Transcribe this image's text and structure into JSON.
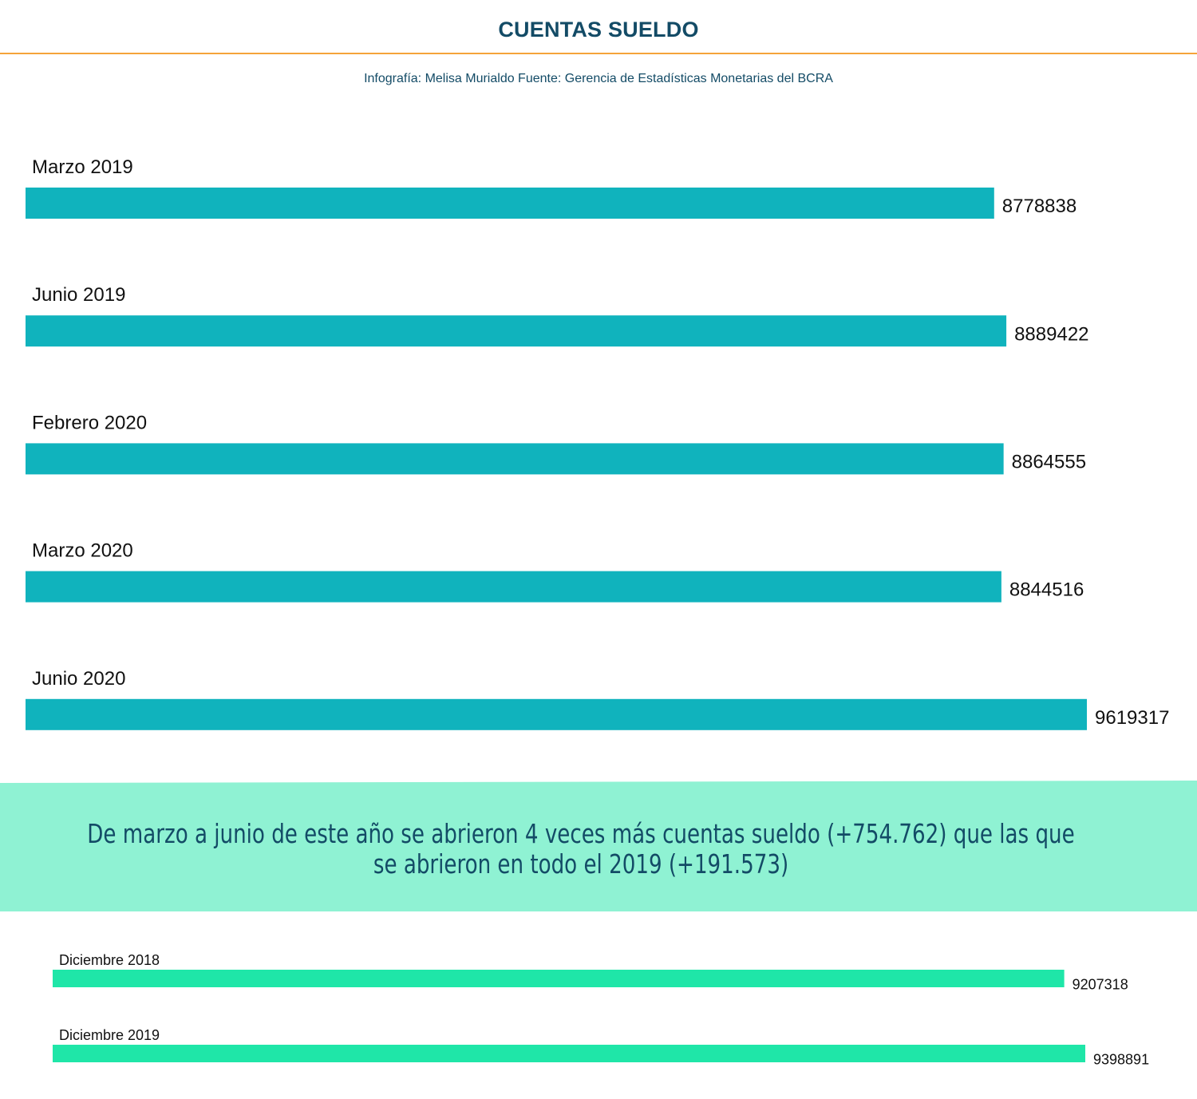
{
  "header": {
    "title": "CUENTAS SUELDO",
    "subtitle": "Infografía: Melisa Murialdo Fuente: Gerencia de Estadísticas Monetarias del BCRA"
  },
  "callout": {
    "text": "De marzo a junio de este año se abrieron 4 veces más cuentas sueldo (+754.762) que las que se abrieron en todo el 2019 (+191.573)"
  },
  "colors": {
    "title": "#134b66",
    "rule": "#f5a33a",
    "bar_top": "#10b3bd",
    "callout_bg": "#8ff2d3",
    "bar_bottom": "#1fe6a8"
  },
  "chart_data": [
    {
      "type": "bar",
      "orientation": "horizontal",
      "categories": [
        "Marzo 2019",
        "Junio 2019",
        "Febrero 2020",
        "Marzo 2020",
        "Junio 2020"
      ],
      "values": [
        8778838,
        8889422,
        8864555,
        8844516,
        9619317
      ],
      "value_labels": [
        "8778838",
        "8889422",
        "8864555",
        "8844516",
        "9619317"
      ],
      "axis": "none",
      "grid": false,
      "legend": "none"
    },
    {
      "type": "bar",
      "orientation": "horizontal",
      "categories": [
        "Diciembre 2018",
        "Diciembre 2019"
      ],
      "values": [
        9207318,
        9398891
      ],
      "value_labels": [
        "9207318",
        "9398891"
      ],
      "axis": "none",
      "grid": false,
      "legend": "none"
    }
  ]
}
